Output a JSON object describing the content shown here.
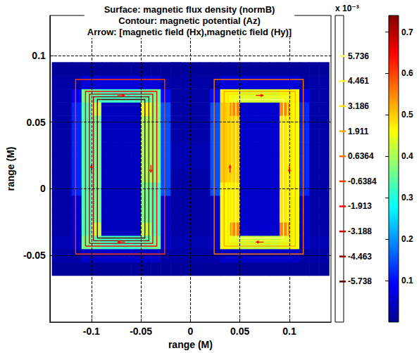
{
  "chart_data": {
    "type": "heatmap",
    "title": [
      "Surface: magnetic flux density (normB)",
      "Contour: magnetic potential (Az)",
      "Arrow: [magnetic field (Hx),magnetic field (Hy)]"
    ],
    "x_label": "range (M)",
    "y_label": "range (M)",
    "xlim": [
      -0.142,
      0.142
    ],
    "ylim": [
      -0.1,
      0.13
    ],
    "xticks": [
      -0.1,
      -0.05,
      0,
      0.05,
      0.1
    ],
    "yticks": [
      -0.05,
      0,
      0.05,
      0.1
    ],
    "grid": true,
    "x": [
      -0.135,
      -0.125,
      -0.115,
      -0.105,
      -0.095,
      -0.085,
      -0.075,
      -0.065,
      -0.055,
      -0.045,
      -0.035,
      -0.025,
      -0.015,
      -0.005,
      0.005,
      0.015,
      0.025,
      0.035,
      0.045,
      0.055,
      0.065,
      0.075,
      0.085,
      0.095,
      0.105,
      0.115,
      0.125,
      0.135
    ],
    "y": [
      -0.06,
      -0.05,
      -0.04,
      -0.03,
      -0.02,
      -0.01,
      0,
      0.01,
      0.02,
      0.03,
      0.04,
      0.05,
      0.06,
      0.07,
      0.08,
      0.09
    ],
    "z": [
      [
        0.01,
        0.01,
        0.01,
        0.01,
        0.01,
        0.01,
        0.01,
        0.01,
        0.01,
        0.01,
        0.01,
        0.01,
        0.01,
        0.01,
        0.01,
        0.01,
        0.01,
        0.01,
        0.01,
        0.01,
        0.01,
        0.01,
        0.01,
        0.01,
        0.01,
        0.01,
        0.01,
        0.01
      ],
      [
        0.02,
        0.02,
        0.02,
        0.05,
        0.05,
        0.05,
        0.05,
        0.05,
        0.05,
        0.05,
        0.05,
        0.02,
        0.02,
        0.02,
        0.02,
        0.02,
        0.02,
        0.05,
        0.05,
        0.05,
        0.05,
        0.05,
        0.05,
        0.05,
        0.05,
        0.02,
        0.02,
        0.02
      ],
      [
        0.03,
        0.03,
        0.05,
        0.36,
        0.34,
        0.32,
        0.32,
        0.32,
        0.32,
        0.34,
        0.36,
        0.05,
        0.03,
        0.03,
        0.03,
        0.03,
        0.05,
        0.46,
        0.44,
        0.42,
        0.42,
        0.42,
        0.42,
        0.44,
        0.46,
        0.05,
        0.03,
        0.03
      ],
      [
        0.02,
        0.02,
        0.05,
        0.33,
        0.42,
        0.04,
        0.04,
        0.04,
        0.04,
        0.42,
        0.33,
        0.05,
        0.02,
        0.02,
        0.02,
        0.02,
        0.05,
        0.46,
        0.55,
        0.05,
        0.05,
        0.05,
        0.05,
        0.55,
        0.46,
        0.05,
        0.02,
        0.02
      ],
      [
        0.02,
        0.02,
        0.05,
        0.33,
        0.36,
        0.04,
        0.04,
        0.04,
        0.04,
        0.36,
        0.33,
        0.05,
        0.02,
        0.02,
        0.02,
        0.02,
        0.05,
        0.46,
        0.48,
        0.05,
        0.05,
        0.05,
        0.05,
        0.48,
        0.46,
        0.05,
        0.02,
        0.02
      ],
      [
        0.02,
        0.02,
        0.05,
        0.33,
        0.36,
        0.04,
        0.04,
        0.04,
        0.04,
        0.36,
        0.33,
        0.05,
        0.02,
        0.02,
        0.02,
        0.02,
        0.05,
        0.46,
        0.48,
        0.05,
        0.05,
        0.05,
        0.05,
        0.48,
        0.46,
        0.05,
        0.02,
        0.02
      ],
      [
        0.02,
        0.02,
        0.12,
        0.33,
        0.36,
        0.04,
        0.04,
        0.04,
        0.04,
        0.36,
        0.33,
        0.15,
        0.02,
        0.02,
        0.02,
        0.02,
        0.15,
        0.46,
        0.48,
        0.05,
        0.05,
        0.05,
        0.05,
        0.48,
        0.46,
        0.12,
        0.02,
        0.02
      ],
      [
        0.02,
        0.02,
        0.12,
        0.33,
        0.36,
        0.04,
        0.04,
        0.04,
        0.04,
        0.4,
        0.38,
        0.15,
        0.02,
        0.02,
        0.02,
        0.02,
        0.15,
        0.5,
        0.5,
        0.05,
        0.05,
        0.05,
        0.05,
        0.48,
        0.46,
        0.12,
        0.02,
        0.02
      ],
      [
        0.02,
        0.02,
        0.12,
        0.33,
        0.36,
        0.04,
        0.04,
        0.04,
        0.04,
        0.4,
        0.38,
        0.15,
        0.03,
        0.03,
        0.03,
        0.03,
        0.15,
        0.5,
        0.5,
        0.05,
        0.05,
        0.05,
        0.05,
        0.48,
        0.46,
        0.12,
        0.02,
        0.02
      ],
      [
        0.02,
        0.02,
        0.12,
        0.33,
        0.36,
        0.04,
        0.04,
        0.04,
        0.04,
        0.4,
        0.38,
        0.15,
        0.03,
        0.03,
        0.03,
        0.03,
        0.15,
        0.5,
        0.5,
        0.05,
        0.05,
        0.05,
        0.05,
        0.48,
        0.46,
        0.12,
        0.02,
        0.02
      ],
      [
        0.02,
        0.02,
        0.12,
        0.33,
        0.36,
        0.04,
        0.04,
        0.04,
        0.04,
        0.4,
        0.38,
        0.15,
        0.02,
        0.02,
        0.02,
        0.02,
        0.15,
        0.5,
        0.5,
        0.05,
        0.05,
        0.05,
        0.05,
        0.48,
        0.46,
        0.12,
        0.02,
        0.02
      ],
      [
        0.02,
        0.02,
        0.12,
        0.33,
        0.36,
        0.04,
        0.04,
        0.04,
        0.04,
        0.4,
        0.38,
        0.15,
        0.02,
        0.02,
        0.02,
        0.02,
        0.15,
        0.5,
        0.5,
        0.05,
        0.05,
        0.05,
        0.05,
        0.48,
        0.46,
        0.12,
        0.02,
        0.02
      ],
      [
        0.02,
        0.02,
        0.12,
        0.33,
        0.42,
        0.04,
        0.04,
        0.04,
        0.04,
        0.45,
        0.38,
        0.15,
        0.02,
        0.02,
        0.02,
        0.02,
        0.15,
        0.5,
        0.55,
        0.05,
        0.05,
        0.05,
        0.05,
        0.55,
        0.46,
        0.12,
        0.02,
        0.02
      ],
      [
        0.02,
        0.02,
        0.08,
        0.36,
        0.34,
        0.32,
        0.32,
        0.32,
        0.32,
        0.34,
        0.36,
        0.1,
        0.02,
        0.02,
        0.02,
        0.02,
        0.1,
        0.47,
        0.45,
        0.43,
        0.43,
        0.43,
        0.43,
        0.45,
        0.47,
        0.08,
        0.02,
        0.02
      ],
      [
        0.02,
        0.02,
        0.02,
        0.06,
        0.06,
        0.06,
        0.06,
        0.06,
        0.06,
        0.06,
        0.06,
        0.02,
        0.02,
        0.02,
        0.02,
        0.02,
        0.02,
        0.06,
        0.06,
        0.06,
        0.06,
        0.06,
        0.06,
        0.06,
        0.06,
        0.02,
        0.02,
        0.02
      ],
      [
        0.01,
        0.01,
        0.01,
        0.01,
        0.01,
        0.01,
        0.01,
        0.01,
        0.01,
        0.01,
        0.01,
        0.01,
        0.01,
        0.01,
        0.01,
        0.01,
        0.01,
        0.01,
        0.01,
        0.01,
        0.01,
        0.01,
        0.01,
        0.01,
        0.01,
        0.01,
        0.01,
        0.01
      ]
    ],
    "colorbar": {
      "range": [
        0,
        0.74
      ],
      "ticks": [
        0.1,
        0.2,
        0.3,
        0.4,
        0.5,
        0.6,
        0.7
      ]
    },
    "contour_colorbar": {
      "title": "x 10⁻³",
      "range": [
        -0.0078,
        0.0078
      ],
      "ticks": [
        {
          "value": 0.005736,
          "label": "5.736"
        },
        {
          "value": 0.004461,
          "label": "4.461"
        },
        {
          "value": 0.003186,
          "label": "3.186"
        },
        {
          "value": 0.001911,
          "label": "1.911"
        },
        {
          "value": 0.0006364,
          "label": "0.6364"
        },
        {
          "value": -0.0006384,
          "label": "-0.6384"
        },
        {
          "value": -0.001913,
          "label": "-1.913"
        },
        {
          "value": -0.003188,
          "label": "-3.188"
        },
        {
          "value": -0.004463,
          "label": "-4.463"
        },
        {
          "value": -0.005738,
          "label": "-5.738"
        }
      ]
    },
    "contours": [
      {
        "level": -0.005738,
        "points": [
          [
            -0.094,
            -0.037
          ],
          [
            -0.046,
            -0.037
          ],
          [
            -0.046,
            0.067
          ],
          [
            -0.094,
            0.067
          ],
          [
            -0.094,
            -0.037
          ]
        ]
      },
      {
        "level": -0.004463,
        "points": [
          [
            -0.098,
            -0.039
          ],
          [
            -0.042,
            -0.039
          ],
          [
            -0.042,
            0.069
          ],
          [
            -0.098,
            0.069
          ],
          [
            -0.098,
            -0.039
          ]
        ]
      },
      {
        "level": -0.003188,
        "points": [
          [
            -0.102,
            -0.041
          ],
          [
            -0.038,
            -0.041
          ],
          [
            -0.038,
            0.071
          ],
          [
            -0.102,
            0.071
          ],
          [
            -0.102,
            -0.041
          ]
        ]
      },
      {
        "level": -0.001913,
        "points": [
          [
            -0.106,
            -0.043
          ],
          [
            -0.034,
            -0.043
          ],
          [
            -0.034,
            0.073
          ],
          [
            -0.106,
            0.073
          ],
          [
            -0.106,
            -0.043
          ]
        ]
      },
      {
        "level": -0.0006384,
        "points": [
          [
            -0.116,
            -0.049
          ],
          [
            -0.026,
            -0.049
          ],
          [
            -0.026,
            0.082
          ],
          [
            -0.116,
            0.082
          ],
          [
            -0.116,
            -0.049
          ]
        ]
      },
      {
        "level": 0.005736,
        "points": [
          [
            0.046,
            -0.037
          ],
          [
            0.094,
            -0.037
          ],
          [
            0.094,
            0.067
          ],
          [
            0.046,
            0.067
          ],
          [
            0.046,
            -0.037
          ]
        ]
      },
      {
        "level": 0.004461,
        "points": [
          [
            0.042,
            -0.039
          ],
          [
            0.098,
            -0.039
          ],
          [
            0.098,
            0.069
          ],
          [
            0.042,
            0.069
          ],
          [
            0.042,
            -0.039
          ]
        ]
      },
      {
        "level": 0.003186,
        "points": [
          [
            0.038,
            -0.041
          ],
          [
            0.102,
            -0.041
          ],
          [
            0.102,
            0.071
          ],
          [
            0.038,
            0.071
          ],
          [
            0.038,
            -0.041
          ]
        ]
      },
      {
        "level": 0.001911,
        "points": [
          [
            0.034,
            -0.043
          ],
          [
            0.106,
            -0.043
          ],
          [
            0.106,
            0.073
          ],
          [
            0.034,
            0.073
          ],
          [
            0.034,
            -0.043
          ]
        ]
      },
      {
        "level": 0.0006364,
        "points": [
          [
            0.024,
            -0.049
          ],
          [
            0.114,
            -0.049
          ],
          [
            0.114,
            0.082
          ],
          [
            0.024,
            0.082
          ],
          [
            0.024,
            -0.049
          ]
        ]
      }
    ],
    "arrows": {
      "color": "#ff0000",
      "x": [
        -0.04,
        -0.1,
        -0.07,
        -0.07,
        0.1,
        0.04,
        0.07,
        0.07
      ],
      "y": [
        0.015,
        0.015,
        0.07,
        -0.04,
        0.015,
        0.015,
        0.07,
        -0.04
      ],
      "hx": [
        0,
        0,
        1,
        -1,
        0,
        0,
        1,
        -1
      ],
      "hy": [
        -1,
        1,
        0,
        0,
        -1,
        1,
        0,
        0
      ]
    }
  }
}
